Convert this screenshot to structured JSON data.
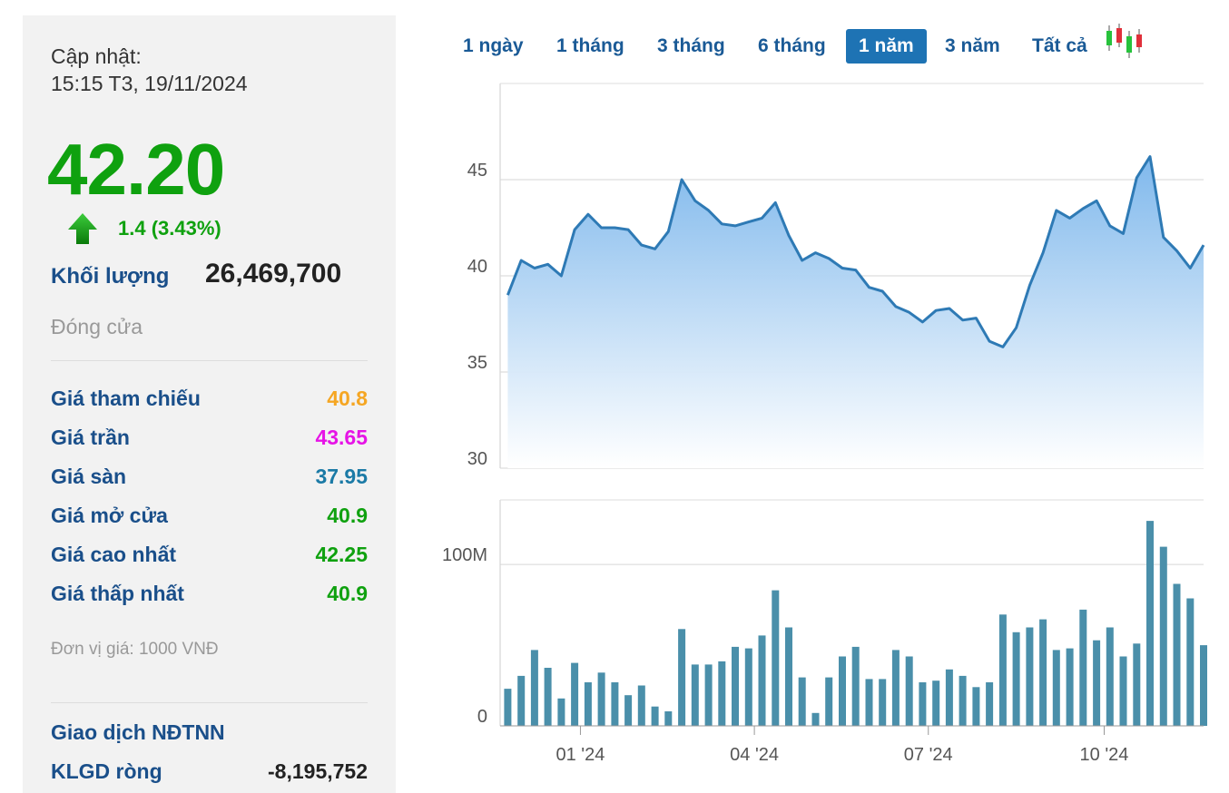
{
  "quote": {
    "updated_label": "Cập nhật:",
    "updated_time": "15:15 T3, 19/11/2024",
    "price": "42.20",
    "change": "1.4 (3.43%)",
    "volume_label": "Khối lượng",
    "volume": "26,469,700",
    "status": "Đóng cửa",
    "direction_color": "#0fa10f"
  },
  "stats": [
    {
      "label": "Giá tham chiếu",
      "value": "40.8",
      "color": "#f5a623"
    },
    {
      "label": "Giá trần",
      "value": "43.65",
      "color": "#e614e6"
    },
    {
      "label": "Giá sàn",
      "value": "37.95",
      "color": "#1b7aa6"
    },
    {
      "label": "Giá mở cửa",
      "value": "40.9",
      "color": "#0fa10f"
    },
    {
      "label": "Giá cao nhất",
      "value": "42.25",
      "color": "#0fa10f"
    },
    {
      "label": "Giá thấp nhất",
      "value": "40.9",
      "color": "#0fa10f"
    }
  ],
  "unit_note": "Đơn vị giá: 1000 VNĐ",
  "foreign": {
    "title": "Giao dịch NĐTNN",
    "net_label": "KLGD ròng",
    "net_value": "-8,195,752"
  },
  "ranges": {
    "items": [
      "1 ngày",
      "1 tháng",
      "3 tháng",
      "6 tháng",
      "1 năm",
      "3 năm",
      "Tất cả"
    ],
    "active": "1 năm"
  },
  "icons": {
    "up": "up-arrow-icon",
    "candle": "candlestick-icon"
  },
  "chart_data": [
    {
      "type": "area",
      "title": "",
      "xlabel": "",
      "ylabel": "",
      "ylim": [
        30,
        50
      ],
      "yticks": [
        30,
        35,
        40,
        45
      ],
      "x_tick_labels": [
        "01 '24",
        "04 '24",
        "07 '24",
        "10 '24"
      ],
      "x_range": [
        "2023-11-20",
        "2024-11-22"
      ],
      "x_ticks": [
        "2024-01-01",
        "2024-04-01",
        "2024-07-01",
        "2024-10-01"
      ],
      "grid": true,
      "color": "#2e7ab5",
      "series": [
        {
          "x": [
            "2023-11-24",
            "2023-12-01",
            "2023-12-08",
            "2023-12-15",
            "2023-12-22",
            "2023-12-29",
            "2024-01-05",
            "2024-01-12",
            "2024-01-19",
            "2024-01-26",
            "2024-02-02",
            "2024-02-09",
            "2024-02-16",
            "2024-02-23",
            "2024-03-01",
            "2024-03-08",
            "2024-03-15",
            "2024-03-22",
            "2024-03-29",
            "2024-04-05",
            "2024-04-12",
            "2024-04-19",
            "2024-04-26",
            "2024-05-03",
            "2024-05-10",
            "2024-05-17",
            "2024-05-24",
            "2024-05-31",
            "2024-06-07",
            "2024-06-14",
            "2024-06-21",
            "2024-06-28",
            "2024-07-05",
            "2024-07-12",
            "2024-07-19",
            "2024-07-26",
            "2024-08-02",
            "2024-08-09",
            "2024-08-16",
            "2024-08-23",
            "2024-08-30",
            "2024-09-06",
            "2024-09-13",
            "2024-09-20",
            "2024-09-27",
            "2024-10-04",
            "2024-10-11",
            "2024-10-18",
            "2024-10-25",
            "2024-11-01",
            "2024-11-08",
            "2024-11-15",
            "2024-11-22"
          ],
          "values": [
            39.0,
            40.8,
            40.4,
            40.6,
            40.0,
            42.4,
            43.2,
            42.5,
            42.5,
            42.4,
            41.6,
            41.4,
            42.3,
            45.0,
            43.9,
            43.4,
            42.7,
            42.6,
            42.8,
            43.0,
            43.8,
            42.1,
            40.8,
            41.2,
            40.9,
            40.4,
            40.3,
            39.4,
            39.2,
            38.4,
            38.1,
            37.6,
            38.2,
            38.3,
            37.7,
            37.8,
            36.6,
            36.3,
            37.3,
            39.5,
            41.2,
            43.4,
            43.0,
            43.5,
            43.9,
            42.6,
            42.2,
            45.1,
            46.2,
            42.0,
            41.3,
            40.4,
            41.6
          ]
        }
      ]
    },
    {
      "type": "bar",
      "title": "",
      "xlabel": "",
      "ylabel": "",
      "units": "M",
      "ylim": [
        0,
        140
      ],
      "yticks": [
        0,
        100
      ],
      "ytick_labels": [
        "0",
        "100M"
      ],
      "x_tick_labels": [
        "01 '24",
        "04 '24",
        "07 '24",
        "10 '24"
      ],
      "grid": true,
      "color": "#4a8faa",
      "series": [
        {
          "x": [
            "2023-11-24",
            "2023-12-01",
            "2023-12-08",
            "2023-12-15",
            "2023-12-22",
            "2023-12-29",
            "2024-01-05",
            "2024-01-12",
            "2024-01-19",
            "2024-01-26",
            "2024-02-02",
            "2024-02-09",
            "2024-02-16",
            "2024-02-23",
            "2024-03-01",
            "2024-03-08",
            "2024-03-15",
            "2024-03-22",
            "2024-03-29",
            "2024-04-05",
            "2024-04-12",
            "2024-04-19",
            "2024-04-26",
            "2024-05-03",
            "2024-05-10",
            "2024-05-17",
            "2024-05-24",
            "2024-05-31",
            "2024-06-07",
            "2024-06-14",
            "2024-06-21",
            "2024-06-28",
            "2024-07-05",
            "2024-07-12",
            "2024-07-19",
            "2024-07-26",
            "2024-08-02",
            "2024-08-09",
            "2024-08-16",
            "2024-08-23",
            "2024-08-30",
            "2024-09-06",
            "2024-09-13",
            "2024-09-20",
            "2024-09-27",
            "2024-10-04",
            "2024-10-11",
            "2024-10-18",
            "2024-10-25",
            "2024-11-01",
            "2024-11-08",
            "2024-11-15",
            "2024-11-22"
          ],
          "values": [
            23,
            31,
            47,
            36,
            17,
            39,
            27,
            33,
            27,
            19,
            25,
            12,
            9,
            60,
            38,
            38,
            40,
            49,
            48,
            56,
            84,
            61,
            30,
            8,
            30,
            43,
            49,
            29,
            29,
            47,
            43,
            27,
            28,
            35,
            31,
            24,
            27,
            69,
            58,
            61,
            66,
            47,
            48,
            72,
            53,
            61,
            43,
            51,
            127,
            111,
            88,
            79,
            50
          ]
        }
      ]
    }
  ]
}
